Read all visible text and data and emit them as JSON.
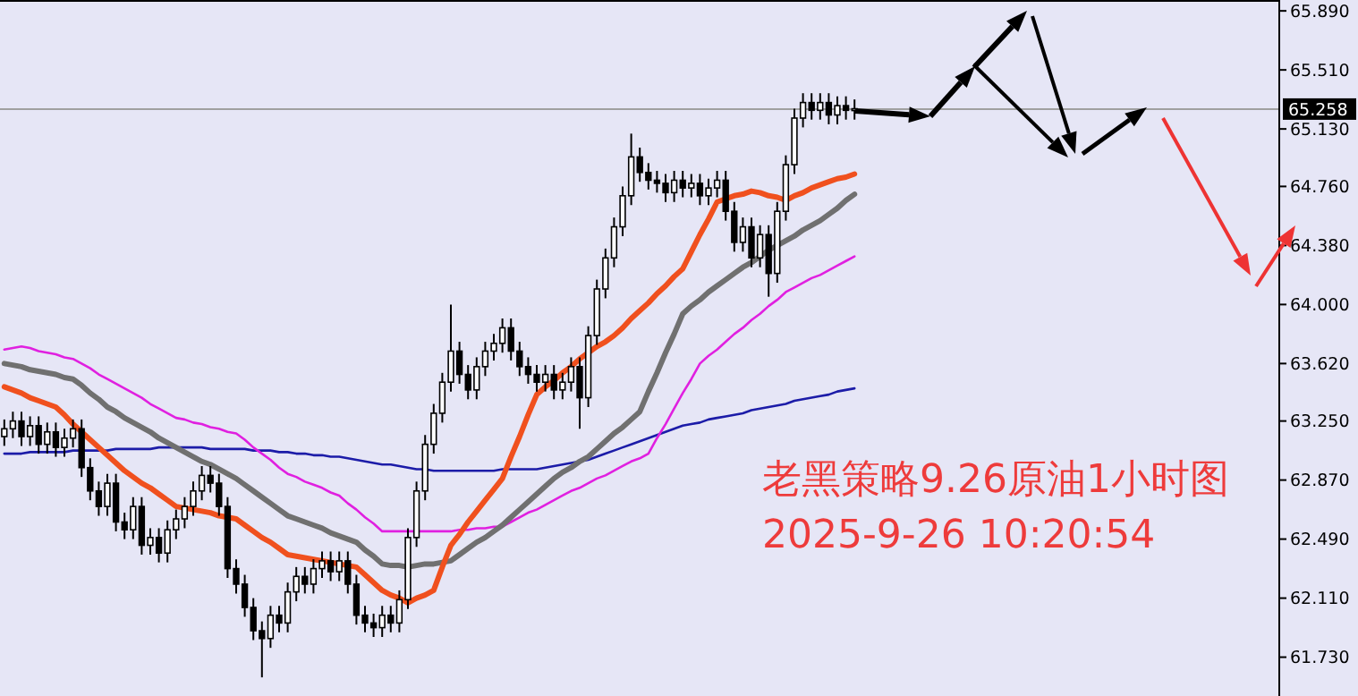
{
  "chart_data": {
    "type": "candlestick",
    "annotations": [
      "老黑策略9.26原油1小时图",
      "2025-9-26 10:20:54"
    ],
    "categories": [
      null,
      null,
      null,
      null,
      null,
      null,
      null,
      null,
      null,
      null,
      null,
      null,
      null,
      null,
      null,
      null,
      null,
      null,
      null,
      null,
      null,
      null,
      null,
      null,
      null,
      null,
      null,
      null,
      null,
      null,
      null,
      null,
      null,
      null,
      null,
      null,
      null,
      null,
      null,
      null,
      null,
      null,
      null,
      null,
      null,
      null,
      null,
      null,
      null,
      null,
      null,
      null,
      null,
      null,
      null,
      null,
      null,
      null,
      null,
      null,
      null,
      null,
      null,
      null,
      null,
      null,
      null,
      null,
      null,
      null,
      null,
      null,
      null,
      null,
      null,
      null,
      null,
      null,
      null,
      null,
      null,
      null,
      null,
      null,
      null,
      null,
      null,
      null,
      null,
      null,
      null,
      null,
      null,
      null,
      null,
      null,
      null,
      null,
      null,
      null
    ],
    "ohlc": [
      [
        63.15,
        63.26,
        63.09,
        63.2
      ],
      [
        63.2,
        63.31,
        63.14,
        63.25
      ],
      [
        63.25,
        63.31,
        63.09,
        63.15
      ],
      [
        63.15,
        63.28,
        63.09,
        63.22
      ],
      [
        63.22,
        63.28,
        63.04,
        63.1
      ],
      [
        63.1,
        63.24,
        63.04,
        63.18
      ],
      [
        63.18,
        63.24,
        63.02,
        63.08
      ],
      [
        63.08,
        63.2,
        63.02,
        63.14
      ],
      [
        63.14,
        63.26,
        63.08,
        63.2
      ],
      [
        63.2,
        63.26,
        62.89,
        62.95
      ],
      [
        62.95,
        63.01,
        62.74,
        62.8
      ],
      [
        62.8,
        62.86,
        62.64,
        62.7
      ],
      [
        62.7,
        62.91,
        62.64,
        62.85
      ],
      [
        62.85,
        62.91,
        62.54,
        62.6
      ],
      [
        62.6,
        62.66,
        62.49,
        62.55
      ],
      [
        62.55,
        62.76,
        62.49,
        62.7
      ],
      [
        62.7,
        62.76,
        62.39,
        62.45
      ],
      [
        62.45,
        62.56,
        62.39,
        62.5
      ],
      [
        62.5,
        62.56,
        62.34,
        62.4
      ],
      [
        62.4,
        62.61,
        62.34,
        62.55
      ],
      [
        62.55,
        62.68,
        62.49,
        62.62
      ],
      [
        62.62,
        62.76,
        62.56,
        62.7
      ],
      [
        62.7,
        62.86,
        62.64,
        62.8
      ],
      [
        62.8,
        62.96,
        62.74,
        62.9
      ],
      [
        62.9,
        62.96,
        62.79,
        62.85
      ],
      [
        62.85,
        62.91,
        62.64,
        62.7
      ],
      [
        62.7,
        62.76,
        62.24,
        62.3
      ],
      [
        62.3,
        62.36,
        62.14,
        62.2
      ],
      [
        62.2,
        62.26,
        61.99,
        62.05
      ],
      [
        62.05,
        62.11,
        61.84,
        61.9
      ],
      [
        61.9,
        61.96,
        61.6,
        61.85
      ],
      [
        61.85,
        62.06,
        61.79,
        62.0
      ],
      [
        62.0,
        62.06,
        61.89,
        61.95
      ],
      [
        61.95,
        62.21,
        61.89,
        62.15
      ],
      [
        62.15,
        62.31,
        62.09,
        62.25
      ],
      [
        62.25,
        62.31,
        62.14,
        62.2
      ],
      [
        62.2,
        62.36,
        62.14,
        62.3
      ],
      [
        62.3,
        62.41,
        62.24,
        62.35
      ],
      [
        62.35,
        62.41,
        62.22,
        62.28
      ],
      [
        62.28,
        62.41,
        62.22,
        62.35
      ],
      [
        62.35,
        62.41,
        62.14,
        62.2
      ],
      [
        62.2,
        62.26,
        61.94,
        62.0
      ],
      [
        62.0,
        62.06,
        61.89,
        61.95
      ],
      [
        61.95,
        62.01,
        61.86,
        61.92
      ],
      [
        61.92,
        62.06,
        61.86,
        62.0
      ],
      [
        62.0,
        62.06,
        61.89,
        61.95
      ],
      [
        61.95,
        62.16,
        61.89,
        62.1
      ],
      [
        62.1,
        62.56,
        62.04,
        62.5
      ],
      [
        62.5,
        62.86,
        62.44,
        62.8
      ],
      [
        62.8,
        63.16,
        62.74,
        63.1
      ],
      [
        63.1,
        63.36,
        63.04,
        63.3
      ],
      [
        63.3,
        63.56,
        63.24,
        63.5
      ],
      [
        63.5,
        64.0,
        63.44,
        63.7
      ],
      [
        63.7,
        63.76,
        63.49,
        63.55
      ],
      [
        63.55,
        63.61,
        63.39,
        63.45
      ],
      [
        63.45,
        63.66,
        63.39,
        63.6
      ],
      [
        63.6,
        63.76,
        63.54,
        63.7
      ],
      [
        63.7,
        63.81,
        63.64,
        63.75
      ],
      [
        63.75,
        63.91,
        63.69,
        63.85
      ],
      [
        63.85,
        63.91,
        63.64,
        63.7
      ],
      [
        63.7,
        63.76,
        63.54,
        63.6
      ],
      [
        63.6,
        63.66,
        63.49,
        63.55
      ],
      [
        63.55,
        63.61,
        63.44,
        63.5
      ],
      [
        63.5,
        63.61,
        63.44,
        63.55
      ],
      [
        63.55,
        63.61,
        63.39,
        63.45
      ],
      [
        63.45,
        63.56,
        63.39,
        63.5
      ],
      [
        63.5,
        63.66,
        63.44,
        63.6
      ],
      [
        63.6,
        63.66,
        63.2,
        63.4
      ],
      [
        63.4,
        63.86,
        63.34,
        63.8
      ],
      [
        63.8,
        64.16,
        63.74,
        64.1
      ],
      [
        64.1,
        64.36,
        64.04,
        64.3
      ],
      [
        64.3,
        64.56,
        64.24,
        64.5
      ],
      [
        64.5,
        64.76,
        64.44,
        64.7
      ],
      [
        64.7,
        65.1,
        64.64,
        64.95
      ],
      [
        64.95,
        65.01,
        64.79,
        64.85
      ],
      [
        64.85,
        64.91,
        64.74,
        64.8
      ],
      [
        64.8,
        64.86,
        64.72,
        64.78
      ],
      [
        64.78,
        64.84,
        64.66,
        64.72
      ],
      [
        64.72,
        64.86,
        64.66,
        64.8
      ],
      [
        64.8,
        64.86,
        64.69,
        64.75
      ],
      [
        64.75,
        64.84,
        64.69,
        64.78
      ],
      [
        64.78,
        64.84,
        64.64,
        64.7
      ],
      [
        64.7,
        64.81,
        64.64,
        64.75
      ],
      [
        64.75,
        64.86,
        64.69,
        64.8
      ],
      [
        64.8,
        64.86,
        64.54,
        64.6
      ],
      [
        64.6,
        64.66,
        64.34,
        64.4
      ],
      [
        64.4,
        64.56,
        64.34,
        64.5
      ],
      [
        64.5,
        64.56,
        64.24,
        64.3
      ],
      [
        64.3,
        64.51,
        64.24,
        64.45
      ],
      [
        64.45,
        64.51,
        64.05,
        64.2
      ],
      [
        64.2,
        64.66,
        64.14,
        64.6
      ],
      [
        64.6,
        64.96,
        64.54,
        64.9
      ],
      [
        64.9,
        65.26,
        64.84,
        65.2
      ],
      [
        65.2,
        65.36,
        65.14,
        65.3
      ],
      [
        65.3,
        65.36,
        65.19,
        65.25
      ],
      [
        65.25,
        65.36,
        65.19,
        65.3
      ],
      [
        65.3,
        65.36,
        65.16,
        65.22
      ],
      [
        65.22,
        65.34,
        65.16,
        65.28
      ],
      [
        65.28,
        65.34,
        65.19,
        65.25
      ],
      [
        65.25,
        65.32,
        65.19,
        65.26
      ]
    ],
    "series": [
      {
        "type": "line",
        "color": "#1c1ca8",
        "values": [
          63.04,
          63.04,
          63.04,
          63.05,
          63.05,
          63.05,
          63.05,
          63.05,
          63.06,
          63.06,
          63.06,
          63.06,
          63.06,
          63.07,
          63.07,
          63.07,
          63.07,
          63.07,
          63.08,
          63.08,
          63.08,
          63.08,
          63.08,
          63.08,
          63.07,
          63.07,
          63.07,
          63.07,
          63.07,
          63.06,
          63.06,
          63.06,
          63.05,
          63.05,
          63.04,
          63.04,
          63.03,
          63.03,
          63.02,
          63.02,
          63.01,
          63.0,
          62.99,
          62.98,
          62.97,
          62.97,
          62.96,
          62.95,
          62.94,
          62.94,
          62.93,
          62.93,
          62.93,
          62.93,
          62.93,
          62.93,
          62.93,
          62.93,
          62.94,
          62.94,
          62.94,
          62.94,
          62.94,
          62.95,
          62.96,
          62.97,
          62.98,
          62.99,
          63.0,
          63.02,
          63.04,
          63.06,
          63.08,
          63.1,
          63.12,
          63.14,
          63.16,
          63.18,
          63.2,
          63.22,
          63.23,
          63.24,
          63.26,
          63.27,
          63.28,
          63.29,
          63.3,
          63.32,
          63.33,
          63.34,
          63.35,
          63.36,
          63.38,
          63.39,
          63.4,
          63.41,
          63.42,
          63.44,
          63.45,
          63.46
        ]
      },
      {
        "type": "line",
        "color": "#e020e0",
        "values": [
          63.71,
          63.72,
          63.73,
          63.72,
          63.7,
          63.69,
          63.68,
          63.66,
          63.65,
          63.62,
          63.59,
          63.55,
          63.52,
          63.49,
          63.46,
          63.43,
          63.4,
          63.36,
          63.33,
          63.3,
          63.27,
          63.26,
          63.24,
          63.23,
          63.21,
          63.2,
          63.18,
          63.17,
          63.13,
          63.08,
          63.04,
          63.0,
          62.95,
          62.91,
          62.89,
          62.86,
          62.84,
          62.82,
          62.79,
          62.77,
          62.72,
          62.68,
          62.63,
          62.59,
          62.54,
          62.54,
          62.54,
          62.54,
          62.54,
          62.54,
          62.54,
          62.54,
          62.54,
          62.55,
          62.55,
          62.56,
          62.56,
          62.57,
          62.57,
          62.6,
          62.63,
          62.66,
          62.68,
          62.71,
          62.74,
          62.77,
          62.8,
          62.82,
          62.85,
          62.88,
          62.9,
          62.93,
          62.96,
          62.99,
          63.01,
          63.04,
          63.14,
          63.23,
          63.33,
          63.43,
          63.52,
          63.62,
          63.67,
          63.71,
          63.76,
          63.81,
          63.85,
          63.9,
          63.94,
          63.99,
          64.03,
          64.08,
          64.11,
          64.14,
          64.17,
          64.19,
          64.22,
          64.25,
          64.28,
          64.31
        ]
      },
      {
        "type": "line",
        "color": "#707070",
        "values": [
          63.62,
          63.61,
          63.6,
          63.58,
          63.57,
          63.56,
          63.55,
          63.53,
          63.52,
          63.48,
          63.43,
          63.39,
          63.34,
          63.31,
          63.27,
          63.24,
          63.21,
          63.18,
          63.14,
          63.11,
          63.08,
          63.05,
          63.02,
          62.99,
          62.97,
          62.94,
          62.91,
          62.88,
          62.84,
          62.8,
          62.76,
          62.72,
          62.68,
          62.64,
          62.62,
          62.6,
          62.58,
          62.56,
          62.53,
          62.51,
          62.49,
          62.47,
          62.42,
          62.38,
          62.33,
          62.32,
          62.32,
          62.31,
          62.32,
          62.33,
          62.33,
          62.34,
          62.35,
          62.39,
          62.43,
          62.47,
          62.5,
          62.54,
          62.58,
          62.63,
          62.68,
          62.73,
          62.78,
          62.83,
          62.88,
          62.92,
          62.95,
          62.99,
          63.02,
          63.07,
          63.12,
          63.17,
          63.21,
          63.26,
          63.31,
          63.44,
          63.56,
          63.69,
          63.81,
          63.94,
          63.99,
          64.03,
          64.08,
          64.12,
          64.16,
          64.2,
          64.24,
          64.27,
          64.31,
          64.35,
          64.38,
          64.41,
          64.44,
          64.48,
          64.51,
          64.54,
          64.58,
          64.62,
          64.67,
          64.71
        ]
      },
      {
        "type": "line",
        "color": "#f0501e",
        "values": [
          63.47,
          63.45,
          63.43,
          63.4,
          63.38,
          63.36,
          63.34,
          63.29,
          63.23,
          63.18,
          63.13,
          63.08,
          63.03,
          62.98,
          62.93,
          62.89,
          62.85,
          62.82,
          62.78,
          62.74,
          62.7,
          62.69,
          62.68,
          62.67,
          62.66,
          62.64,
          62.63,
          62.62,
          62.58,
          62.54,
          62.5,
          62.47,
          62.43,
          62.39,
          62.38,
          62.37,
          62.36,
          62.35,
          62.34,
          62.33,
          62.32,
          62.31,
          62.26,
          62.21,
          62.16,
          62.13,
          62.11,
          62.08,
          62.11,
          62.13,
          62.16,
          62.31,
          62.45,
          62.52,
          62.6,
          62.67,
          62.74,
          62.81,
          62.88,
          63.02,
          63.15,
          63.29,
          63.42,
          63.47,
          63.51,
          63.56,
          63.6,
          63.65,
          63.69,
          63.73,
          63.76,
          63.8,
          63.85,
          63.91,
          63.96,
          64.01,
          64.07,
          64.12,
          64.18,
          64.23,
          64.34,
          64.45,
          64.55,
          64.66,
          64.68,
          64.7,
          64.71,
          64.73,
          64.72,
          64.7,
          64.69,
          64.67,
          64.7,
          64.72,
          64.75,
          64.77,
          64.79,
          64.81,
          64.82,
          64.84
        ]
      }
    ],
    "ylim": [
      61.48,
      65.96
    ],
    "yticks": [
      {
        "value": 61.73,
        "label": "61.730"
      },
      {
        "value": 62.11,
        "label": "62.110"
      },
      {
        "value": 62.49,
        "label": "62.490"
      },
      {
        "value": 62.87,
        "label": "62.870"
      },
      {
        "value": 63.25,
        "label": "63.250"
      },
      {
        "value": 63.62,
        "label": "63.620"
      },
      {
        "value": 64.0,
        "label": "64.000"
      },
      {
        "value": 64.38,
        "label": "64.380"
      },
      {
        "value": 64.76,
        "label": "64.760"
      },
      {
        "value": 65.13,
        "label": "65.130"
      },
      {
        "value": 65.51,
        "label": "65.510"
      },
      {
        "value": 65.89,
        "label": "65.890"
      }
    ],
    "tick_labels": "y",
    "ref_lines": [
      {
        "axis": "y",
        "value": 65.258,
        "label": "65.258",
        "color": "#a0a0a0"
      }
    ],
    "grid": false
  }
}
